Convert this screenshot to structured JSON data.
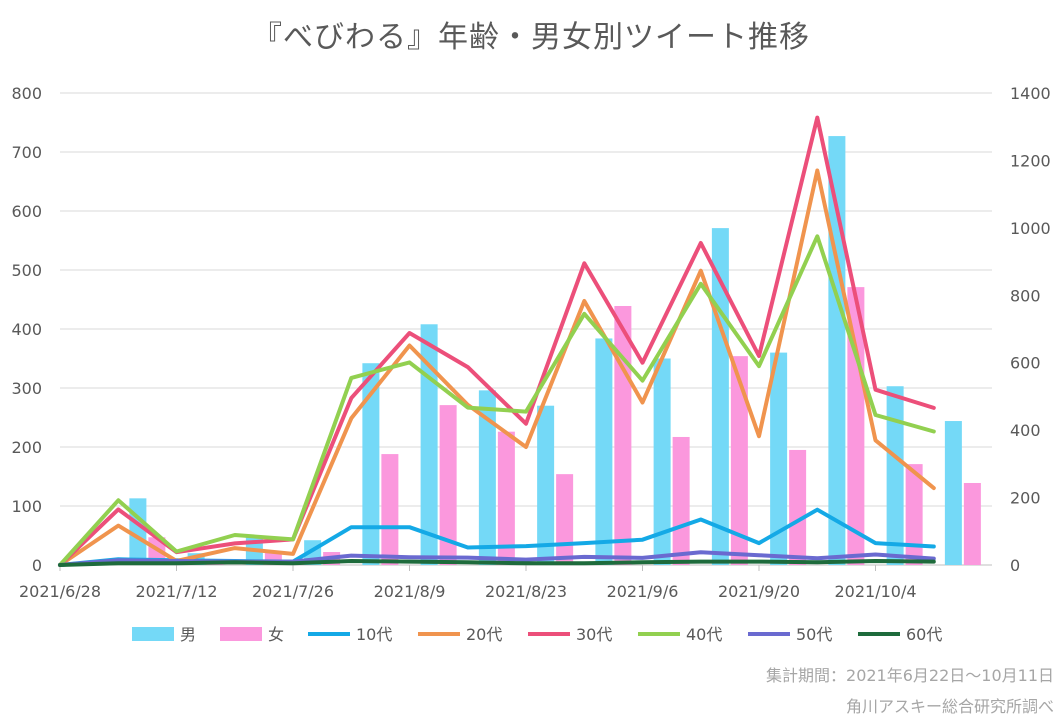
{
  "chart_data": {
    "type": "bar+line",
    "title": "『べびわる』年齢・男女別ツイート推移",
    "x_tick_labels": [
      "2021/6/28",
      "2021/7/12",
      "2021/7/26",
      "2021/8/9",
      "2021/8/23",
      "2021/9/6",
      "2021/9/20",
      "2021/10/4"
    ],
    "categories": [
      "2021/6/28",
      "2021/7/5",
      "2021/7/12",
      "2021/7/19",
      "2021/7/26",
      "2021/8/2",
      "2021/8/9",
      "2021/8/16",
      "2021/8/23",
      "2021/8/30",
      "2021/9/6",
      "2021/9/13",
      "2021/9/20",
      "2021/9/27",
      "2021/10/4",
      "2021/10/11"
    ],
    "left_axis": {
      "min": 0,
      "max": 800,
      "ticks": [
        "0",
        "100",
        "200",
        "300",
        "400",
        "500",
        "600",
        "700",
        "800"
      ]
    },
    "right_axis": {
      "min": 0,
      "max": 1400,
      "ticks": [
        "0",
        "200",
        "400",
        "600",
        "800",
        "1000",
        "1200",
        "1400"
      ]
    },
    "bar_series": [
      {
        "name": "男",
        "color": "#74d9f7",
        "axis": "left",
        "values": [
          0,
          113,
          20,
          48,
          42,
          342,
          408,
          296,
          270,
          384,
          350,
          571,
          360,
          727,
          303,
          244
        ]
      },
      {
        "name": "女",
        "color": "#fb98dd",
        "axis": "left",
        "values": [
          0,
          47,
          10,
          22,
          22,
          188,
          271,
          226,
          154,
          439,
          217,
          354,
          195,
          471,
          171,
          139
        ]
      }
    ],
    "line_series": [
      {
        "name": "10代",
        "color": "#14a9e6",
        "axis": "right",
        "values": [
          0,
          17,
          14,
          12,
          10,
          112,
          112,
          52,
          56,
          65,
          75,
          135,
          65,
          164,
          65,
          55
        ]
      },
      {
        "name": "20代",
        "color": "#f0944e",
        "axis": "right",
        "values": [
          0,
          117,
          12,
          50,
          33,
          435,
          651,
          475,
          350,
          783,
          482,
          873,
          382,
          1170,
          370,
          228
        ]
      },
      {
        "name": "30代",
        "color": "#ec4f7a",
        "axis": "right",
        "values": [
          0,
          165,
          38,
          64,
          76,
          495,
          688,
          587,
          419,
          895,
          600,
          955,
          620,
          1327,
          520,
          466
        ]
      },
      {
        "name": "40代",
        "color": "#92d050",
        "axis": "right",
        "values": [
          0,
          192,
          40,
          89,
          76,
          555,
          601,
          467,
          455,
          745,
          547,
          834,
          590,
          975,
          445,
          396
        ]
      },
      {
        "name": "50代",
        "color": "#6a6ad0",
        "axis": "right",
        "values": [
          0,
          14,
          12,
          10,
          10,
          28,
          23,
          22,
          16,
          24,
          21,
          38,
          29,
          20,
          31,
          19
        ]
      },
      {
        "name": "60代",
        "color": "#1e6b3c",
        "axis": "right",
        "values": [
          0,
          5,
          5,
          8,
          5,
          12,
          10,
          8,
          5,
          5,
          8,
          10,
          10,
          8,
          12,
          10
        ]
      }
    ],
    "legend_position": "bottom",
    "grid": true
  },
  "notes": {
    "period": "集計期間：2021年6月22日～10月11日",
    "source": "角川アスキー総合研究所調べ"
  }
}
